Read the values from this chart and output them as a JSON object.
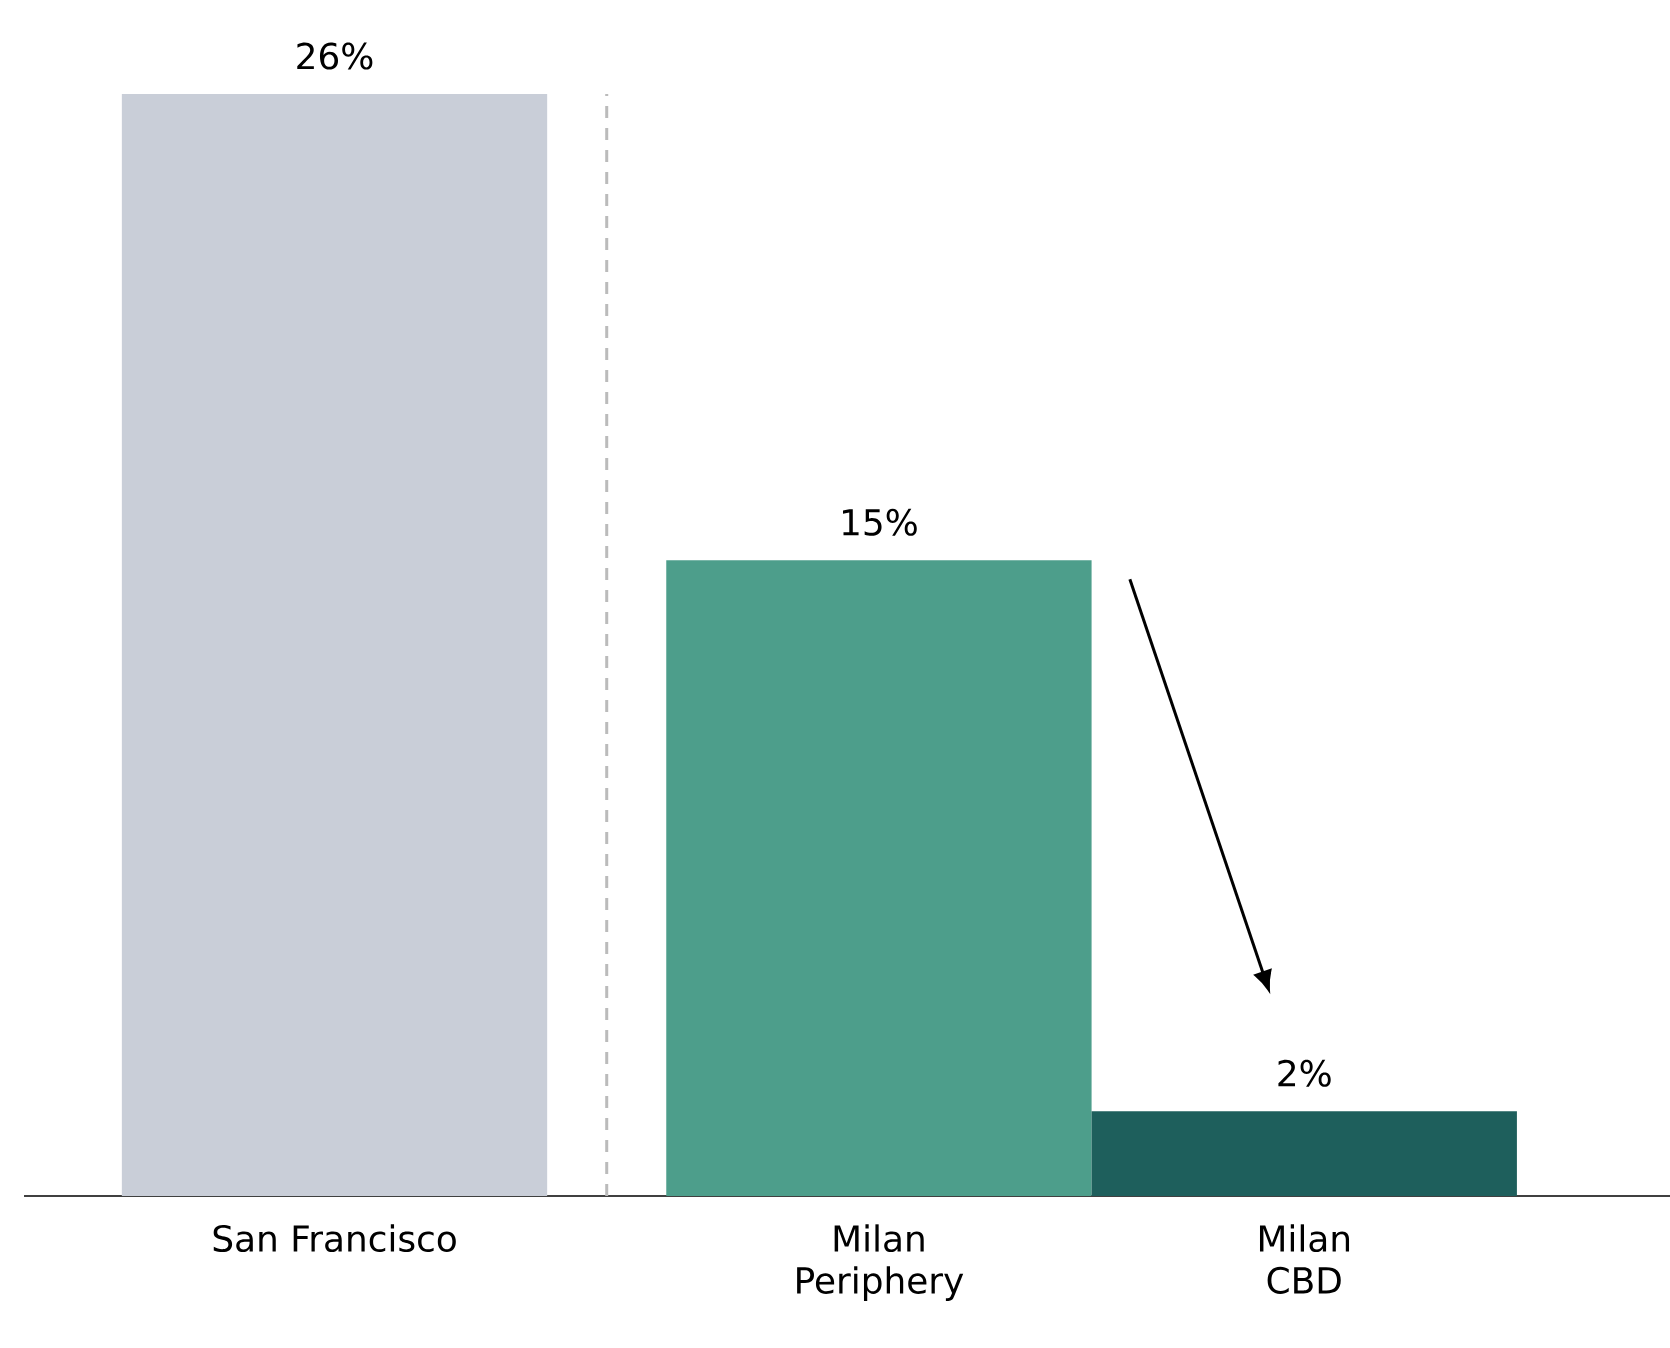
{
  "chart_data": {
    "type": "bar",
    "categories": [
      "San Francisco",
      "Milan Periphery",
      "Milan CBD"
    ],
    "values": [
      26,
      15,
      2
    ],
    "colors": [
      "#c9ced8",
      "#4d9e8b",
      "#1e5f5c"
    ],
    "value_labels": [
      "26%",
      "15%",
      "2%"
    ]
  }
}
